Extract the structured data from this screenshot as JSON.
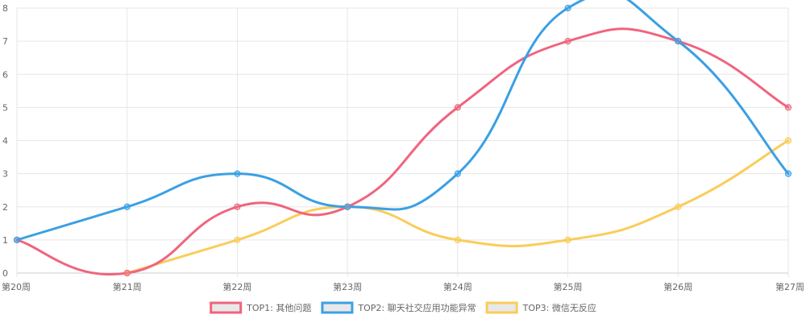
{
  "chart_data": {
    "type": "line",
    "categories": [
      "第20周",
      "第21周",
      "第22周",
      "第23周",
      "第24周",
      "第25周",
      "第26周",
      "第27周"
    ],
    "ylim": [
      0,
      8
    ],
    "yticks": [
      "0",
      "1",
      "2",
      "3",
      "4",
      "5",
      "6",
      "7",
      "8"
    ],
    "grid": true,
    "smooth": true,
    "legend_position": "bottom",
    "series": [
      {
        "name": "TOP1: 其他问题",
        "color": "#f0647e",
        "values": [
          1,
          0,
          2,
          2,
          5,
          7,
          7,
          5
        ]
      },
      {
        "name": "TOP2: 聊天社交应用功能异常",
        "color": "#3aa0e4",
        "values": [
          1,
          2,
          3,
          2,
          3,
          8,
          7,
          3
        ]
      },
      {
        "name": "TOP3: 微信无反应",
        "color": "#f9cd5a",
        "values": [
          null,
          0,
          1,
          2,
          1,
          1,
          2,
          4
        ]
      }
    ]
  }
}
